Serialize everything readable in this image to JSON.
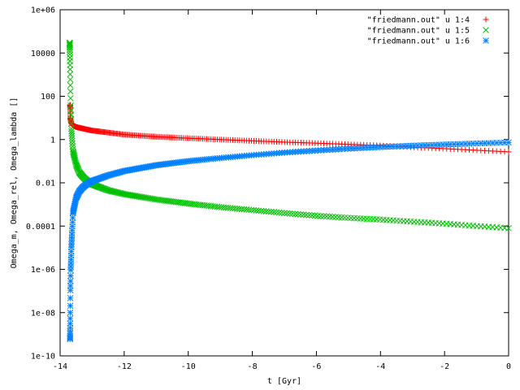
{
  "chart_data": {
    "type": "scatter",
    "title": "",
    "xlabel": "t [Gyr]",
    "ylabel": "Omega_m, Omega_rel, Omega_lambda []",
    "xlim": [
      -14,
      0
    ],
    "ylim": [
      1e-10,
      1000000.0
    ],
    "yscale": "log",
    "grid": false,
    "legend_position": "top-right",
    "x_ticks": [
      -14,
      -12,
      -10,
      -8,
      -6,
      -4,
      -2,
      0
    ],
    "x_tick_labels": [
      "-14",
      "-12",
      "-10",
      "-8",
      "-6",
      "-4",
      "-2",
      "0"
    ],
    "y_ticks": [
      1e-10,
      1e-08,
      1e-06,
      0.0001,
      0.01,
      1,
      100,
      10000,
      1000000.0
    ],
    "y_tick_labels": [
      "1e-10",
      "1e-08",
      "1e-06",
      "0.0001",
      "0.01",
      "1",
      "100",
      "10000",
      "1e+06"
    ],
    "t0": -13.7,
    "series": [
      {
        "name": "\"friedmann.out\" u 1:4",
        "color": "#ff0000",
        "marker": "plus",
        "x": [
          -13.69,
          -13.68,
          -13.66,
          -13.6,
          -13.5,
          -13.2,
          -13,
          -12,
          -11,
          -10,
          -9,
          -8,
          -7,
          -6,
          -5,
          -4,
          -3,
          -2,
          -1,
          0
        ],
        "y": [
          40,
          10,
          6,
          4.5,
          3.8,
          3.0,
          2.6,
          1.7,
          1.35,
          1.15,
          1.0,
          0.87,
          0.76,
          0.68,
          0.6,
          0.53,
          0.44,
          0.38,
          0.32,
          0.27
        ]
      },
      {
        "name": "\"friedmann.out\" u 1:5",
        "color": "#00c000",
        "marker": "cross",
        "x": [
          -13.7,
          -13.69,
          -13.68,
          -13.67,
          -13.65,
          -13.6,
          -13.5,
          -13.4,
          -13.3,
          -13.2,
          -13.1,
          -13,
          -12.5,
          -12,
          -11,
          -10,
          -9,
          -8,
          -7,
          -6,
          -5,
          -4,
          -3,
          -2,
          -1,
          0
        ],
        "y": [
          30000,
          3000,
          300,
          30,
          3,
          0.3,
          0.07,
          0.03,
          0.02,
          0.014,
          0.011,
          0.0085,
          0.0045,
          0.003,
          0.0017,
          0.0011,
          0.00075,
          0.00055,
          0.0004,
          0.0003,
          0.00024,
          0.0002,
          0.00016,
          0.00013,
          0.0001,
          8e-05
        ]
      },
      {
        "name": "\"friedmann.out\" u 1:6",
        "color": "#0080ff",
        "marker": "star",
        "x": [
          -13.69,
          -13.68,
          -13.67,
          -13.65,
          -13.6,
          -13.5,
          -13.4,
          -13.3,
          -13.2,
          -13,
          -12.5,
          -12,
          -11,
          -10,
          -9,
          -8,
          -7,
          -6,
          -5,
          -4,
          -3,
          -2,
          -1,
          0
        ],
        "y": [
          6e-10,
          1e-07,
          1e-06,
          1e-05,
          0.0004,
          0.002,
          0.004,
          0.006,
          0.008,
          0.012,
          0.022,
          0.035,
          0.065,
          0.1,
          0.14,
          0.19,
          0.25,
          0.31,
          0.38,
          0.45,
          0.52,
          0.59,
          0.66,
          0.73
        ]
      }
    ]
  }
}
